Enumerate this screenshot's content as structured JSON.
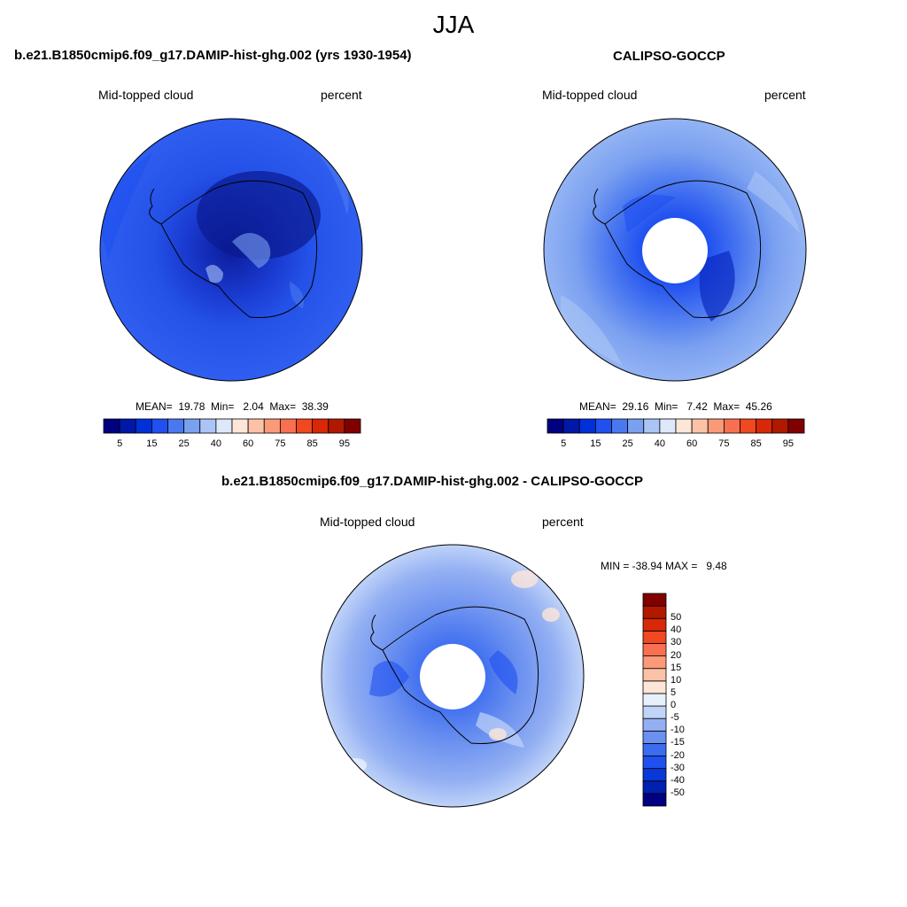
{
  "figure": {
    "title": "JJA"
  },
  "panels": [
    {
      "title": "b.e21.B1850cmip6.f09_g17.DAMIP-hist-ghg.002 (yrs 1930-1954)",
      "variable": "Mid-topped cloud",
      "units": "percent",
      "stats": "MEAN=  19.78  Min=   2.04  Max=  38.39",
      "mean": 19.78,
      "min": 2.04,
      "max": 38.39
    },
    {
      "title": "CALIPSO-GOCCP",
      "variable": "Mid-topped cloud",
      "units": "percent",
      "stats": "MEAN=  29.16  Min=   7.42  Max=  45.26",
      "mean": 29.16,
      "min": 7.42,
      "max": 45.26
    },
    {
      "title": "b.e21.B1850cmip6.f09_g17.DAMIP-hist-ghg.002 - CALIPSO-GOCCP",
      "variable": "Mid-topped cloud",
      "units": "percent",
      "stats": "MIN = -38.94 MAX =   9.48",
      "min": -38.94,
      "max": 9.48
    }
  ],
  "colorbar_abs": {
    "colors": [
      "#000080",
      "#0018a8",
      "#0030d8",
      "#2050f0",
      "#4a78f0",
      "#7aa0f0",
      "#aac4f5",
      "#dde8fa",
      "#fde6d8",
      "#fcc2a8",
      "#fa9a78",
      "#f87050",
      "#f04820",
      "#d82808",
      "#b01800",
      "#800000"
    ],
    "labels": [
      "5",
      "15",
      "25",
      "40",
      "60",
      "75",
      "85",
      "95"
    ]
  },
  "colorbar_diff": {
    "colors": [
      "#000080",
      "#0020b0",
      "#0838d8",
      "#2050f0",
      "#3c6cf0",
      "#6a90f0",
      "#94b0f3",
      "#c0d4f8",
      "#e8f0fc",
      "#fde6d8",
      "#fcc2a8",
      "#fa9a78",
      "#f87050",
      "#f04820",
      "#d82808",
      "#b01800",
      "#800000"
    ],
    "labels": [
      "-50",
      "-40",
      "-30",
      "-20",
      "-15",
      "-10",
      "-5",
      "0",
      "5",
      "10",
      "15",
      "20",
      "30",
      "40",
      "50"
    ]
  }
}
